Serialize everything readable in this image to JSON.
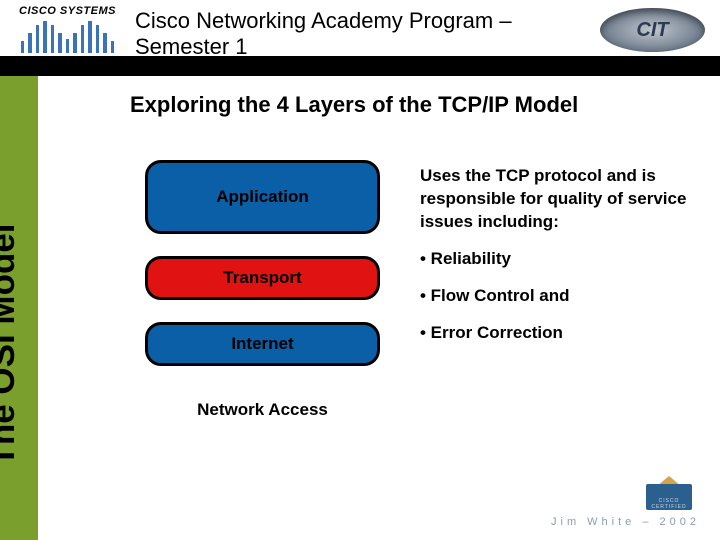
{
  "logo_brand": "CISCO SYSTEMS",
  "header_line1": "Cisco Networking Academy Program –",
  "header_line2": "Semester 1",
  "right_badge": "CIT",
  "slide_title": "Exploring the 4 Layers of the TCP/IP Model",
  "side_label": "The OSI Model",
  "layers": {
    "application": {
      "label": "Application",
      "bg": "#0a5fa6"
    },
    "transport": {
      "label": "Transport",
      "bg": "#e11212"
    },
    "internet": {
      "label": "Internet",
      "bg": "#0a5fa6"
    },
    "netaccess": {
      "label": "Network Access",
      "bg": "#ffffff"
    }
  },
  "description": {
    "intro": "Uses the TCP protocol and is responsible for quality of service issues including:",
    "bullets": [
      "• Reliability",
      "• Flow Control and",
      "• Error Correction"
    ]
  },
  "footer_text": "Jim White – 2002",
  "cert_top": "CISCO",
  "cert_bottom": "CERTIFIED",
  "colors": {
    "sidebar": "#7a9f2d",
    "strip": "#000000",
    "cisco_bar": "#3b73b9",
    "footer": "#8a9bb5"
  },
  "cisco_bar_heights": [
    12,
    20,
    28,
    32,
    28,
    20,
    14,
    20,
    28,
    32,
    28,
    20,
    12
  ]
}
